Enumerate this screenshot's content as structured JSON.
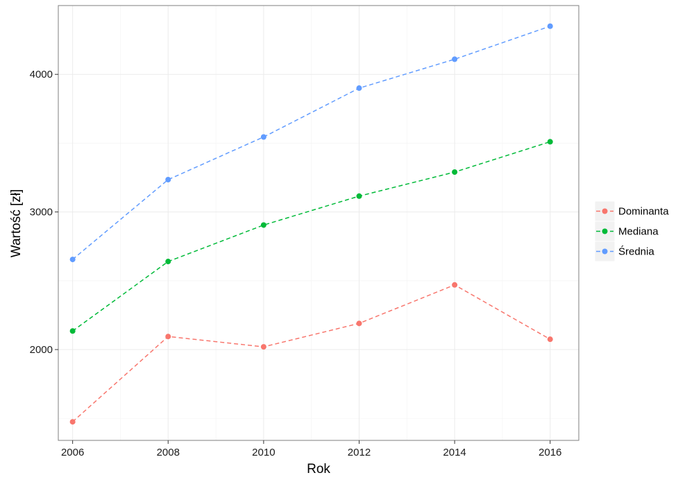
{
  "chart_data": {
    "type": "line",
    "x": [
      2006,
      2008,
      2010,
      2012,
      2014,
      2016
    ],
    "series": [
      {
        "name": "Dominanta",
        "color": "#F8766D",
        "values": [
          1475,
          2095,
          2020,
          2190,
          2470,
          2075
        ]
      },
      {
        "name": "Mediana",
        "color": "#00BA38",
        "values": [
          2135,
          2640,
          2905,
          3115,
          3290,
          3510
        ]
      },
      {
        "name": "Średnia",
        "color": "#619CFF",
        "values": [
          2655,
          3235,
          3545,
          3900,
          4110,
          4350
        ]
      }
    ],
    "xlabel": "Rok",
    "ylabel": "Wartość [zł]",
    "xlim": [
      2005.7,
      2016.6
    ],
    "ylim": [
      1340,
      4500
    ],
    "x_ticks": [
      2006,
      2008,
      2010,
      2012,
      2014,
      2016
    ],
    "x_tick_labels": [
      "2006",
      "2008",
      "2010",
      "2012",
      "2014",
      "2016"
    ],
    "y_ticks": [
      2000,
      3000,
      4000
    ],
    "y_tick_labels": [
      "2000",
      "3000",
      "4000"
    ],
    "line_style": "dashed",
    "grid": true,
    "legend_position": "right"
  }
}
